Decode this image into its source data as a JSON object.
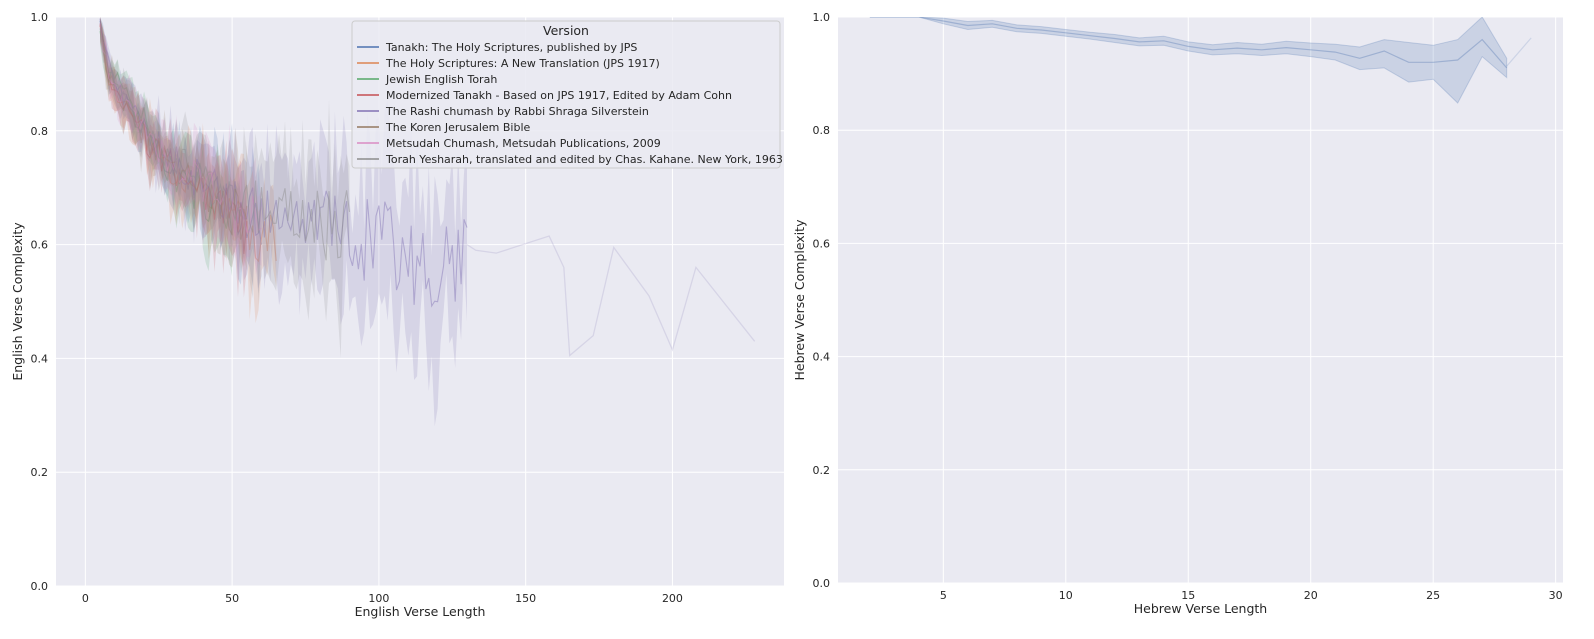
{
  "chart_data": [
    {
      "type": "line",
      "xlabel": "English Verse Length",
      "ylabel": "English Verse Complexity",
      "xlim": [
        -10,
        238
      ],
      "ylim": [
        0.0,
        1.0
      ],
      "xticks": [
        0,
        50,
        100,
        150,
        200
      ],
      "yticks": [
        0.0,
        0.2,
        0.4,
        0.6,
        0.8,
        1.0
      ],
      "xtick_labels": [
        "0",
        "50",
        "100",
        "150",
        "200"
      ],
      "ytick_labels": [
        "0.0",
        "0.2",
        "0.4",
        "0.6",
        "0.8",
        "1.0"
      ],
      "grid": true,
      "legend": {
        "title": "Version",
        "placement": "upper right",
        "entries": [
          {
            "name": "Tanakh: The Holy Scriptures, published by JPS",
            "color": "#4c72b0"
          },
          {
            "name": "The Holy Scriptures: A New Translation (JPS 1917)",
            "color": "#dd8452"
          },
          {
            "name": "Jewish English Torah",
            "color": "#55a868"
          },
          {
            "name": "Modernized Tanakh - Based on JPS 1917, Edited by Adam Cohn",
            "color": "#c44e52"
          },
          {
            "name": "The Rashi chumash by Rabbi Shraga Silverstein",
            "color": "#8172b3"
          },
          {
            "name": "The Koren Jerusalem Bible",
            "color": "#937860"
          },
          {
            "name": "Metsudah Chumash, Metsudah Publications, 2009",
            "color": "#da8bc3"
          },
          {
            "name": "Torah Yesharah, translated and edited by Chas. Kahane. New York, 1963",
            "color": "#8c8c8c"
          }
        ]
      },
      "series": [
        {
          "name": "Tanakh: The Holy Scriptures, published by JPS",
          "color": "#4c72b0",
          "x": [
            5,
            8,
            12,
            16,
            20,
            25,
            30,
            35,
            40,
            45,
            50,
            55,
            60
          ],
          "y": [
            0.99,
            0.9,
            0.86,
            0.83,
            0.8,
            0.77,
            0.74,
            0.72,
            0.7,
            0.68,
            0.67,
            0.65,
            0.64
          ]
        },
        {
          "name": "The Holy Scriptures: A New Translation (JPS 1917)",
          "color": "#dd8452",
          "x": [
            5,
            8,
            12,
            16,
            20,
            25,
            30,
            35,
            40,
            45,
            50,
            55,
            60,
            65
          ],
          "y": [
            0.98,
            0.89,
            0.85,
            0.82,
            0.79,
            0.76,
            0.73,
            0.71,
            0.69,
            0.67,
            0.66,
            0.63,
            0.61,
            0.6
          ]
        },
        {
          "name": "Jewish English Torah",
          "color": "#55a868",
          "x": [
            5,
            8,
            12,
            16,
            20,
            25,
            30,
            35,
            40,
            45,
            50
          ],
          "y": [
            0.97,
            0.9,
            0.88,
            0.84,
            0.82,
            0.76,
            0.72,
            0.7,
            0.69,
            0.66,
            0.65
          ]
        },
        {
          "name": "Modernized Tanakh - Based on JPS 1917, Edited by Adam Cohn",
          "color": "#c44e52",
          "x": [
            5,
            8,
            12,
            16,
            20,
            25,
            30,
            35,
            40,
            45,
            50,
            55
          ],
          "y": [
            0.98,
            0.89,
            0.85,
            0.82,
            0.79,
            0.76,
            0.74,
            0.71,
            0.69,
            0.67,
            0.65,
            0.62
          ]
        },
        {
          "name": "The Rashi chumash by Rabbi Shraga Silverstein",
          "color": "#8172b3",
          "x": [
            5,
            10,
            20,
            30,
            40,
            50,
            60,
            70,
            80,
            90,
            100,
            110,
            120,
            130
          ],
          "y": [
            0.99,
            0.88,
            0.8,
            0.75,
            0.71,
            0.68,
            0.66,
            0.64,
            0.63,
            0.61,
            0.6,
            0.58,
            0.56,
            0.59
          ]
        },
        {
          "name": "The Koren Jerusalem Bible",
          "color": "#937860",
          "x": [
            5,
            8,
            12,
            16,
            20,
            25,
            30,
            35,
            40,
            45,
            50,
            55
          ],
          "y": [
            0.98,
            0.89,
            0.86,
            0.82,
            0.79,
            0.76,
            0.73,
            0.71,
            0.69,
            0.67,
            0.66,
            0.64
          ]
        },
        {
          "name": "Metsudah Chumash, Metsudah Publications, 2009",
          "color": "#da8bc3",
          "x": [
            5,
            8,
            12,
            16,
            20,
            25,
            30,
            35,
            40,
            45,
            50,
            55,
            60
          ],
          "y": [
            0.98,
            0.9,
            0.86,
            0.83,
            0.8,
            0.77,
            0.74,
            0.72,
            0.7,
            0.68,
            0.66,
            0.64,
            0.63
          ]
        },
        {
          "name": "Torah Yesharah, translated and edited by Chas. Kahane. New York, 1963",
          "color": "#8c8c8c",
          "x": [
            5,
            10,
            20,
            30,
            40,
            50,
            60,
            70,
            80,
            90
          ],
          "y": [
            0.97,
            0.88,
            0.8,
            0.75,
            0.71,
            0.68,
            0.66,
            0.67,
            0.64,
            0.62
          ]
        },
        {
          "name": "",
          "color": "#8172b3",
          "opacity": 0.18,
          "x": [
            130,
            133,
            140,
            158,
            163,
            165,
            173,
            180,
            192,
            200,
            208,
            228
          ],
          "y": [
            0.6,
            0.59,
            0.585,
            0.615,
            0.56,
            0.405,
            0.44,
            0.595,
            0.51,
            0.415,
            0.56,
            0.43
          ]
        }
      ]
    },
    {
      "type": "line",
      "xlabel": "Hebrew Verse Length",
      "ylabel": "Hebrew Verse Complexity",
      "xlim": [
        0.7,
        30.3
      ],
      "ylim": [
        0.0,
        1.0
      ],
      "xticks": [
        5,
        10,
        15,
        20,
        25,
        30
      ],
      "yticks": [
        0.0,
        0.2,
        0.4,
        0.6,
        0.8,
        1.0
      ],
      "xtick_labels": [
        "5",
        "10",
        "15",
        "20",
        "25",
        "30"
      ],
      "ytick_labels": [
        "0.0",
        "0.2",
        "0.4",
        "0.6",
        "0.8",
        "1.0"
      ],
      "grid": true,
      "series": [
        {
          "name": "",
          "color": "#4c72b0",
          "x": [
            2,
            3,
            4,
            5,
            6,
            7,
            8,
            9,
            10,
            11,
            12,
            13,
            14,
            15,
            16,
            17,
            18,
            19,
            20,
            21,
            22,
            23,
            24,
            25,
            26,
            27,
            28
          ],
          "y": [
            1.0,
            1.0,
            1.0,
            0.993,
            0.985,
            0.988,
            0.98,
            0.977,
            0.972,
            0.967,
            0.962,
            0.956,
            0.958,
            0.948,
            0.942,
            0.945,
            0.942,
            0.946,
            0.942,
            0.938,
            0.927,
            0.94,
            0.92,
            0.92,
            0.924,
            0.96,
            0.91
          ],
          "lower": [
            1.0,
            1.0,
            1.0,
            0.988,
            0.978,
            0.982,
            0.974,
            0.971,
            0.966,
            0.961,
            0.955,
            0.949,
            0.95,
            0.94,
            0.933,
            0.935,
            0.932,
            0.935,
            0.93,
            0.924,
            0.907,
            0.91,
            0.885,
            0.89,
            0.848,
            0.93,
            0.893
          ],
          "upper": [
            1.0,
            1.0,
            1.0,
            0.998,
            0.992,
            0.994,
            0.986,
            0.983,
            0.978,
            0.973,
            0.969,
            0.963,
            0.966,
            0.956,
            0.951,
            0.955,
            0.952,
            0.957,
            0.954,
            0.952,
            0.947,
            0.96,
            0.955,
            0.95,
            0.96,
            1.0,
            0.927
          ]
        },
        {
          "name": "",
          "color": "#4c72b0",
          "opacity": 0.18,
          "x": [
            28,
            29
          ],
          "y": [
            0.913,
            0.963
          ]
        }
      ]
    }
  ]
}
